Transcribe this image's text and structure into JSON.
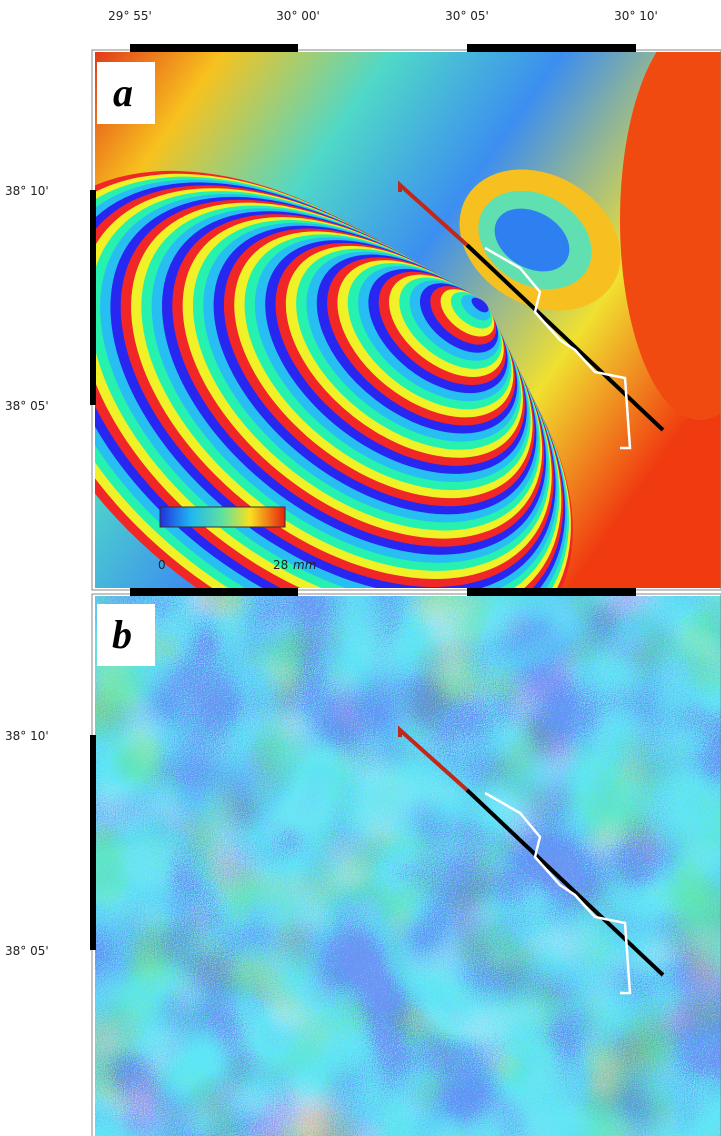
{
  "longitude_labels": [
    "29° 55'",
    "30° 00'",
    "30° 05'",
    "30° 10'"
  ],
  "panels": [
    {
      "label": "a",
      "latitude_labels": [
        "38° 10'",
        "38° 05'"
      ]
    },
    {
      "label": "b",
      "latitude_labels": [
        "38° 10'",
        "38° 05'"
      ]
    }
  ],
  "colorbar": {
    "min": "0",
    "max": "28",
    "unit": "mm"
  }
}
